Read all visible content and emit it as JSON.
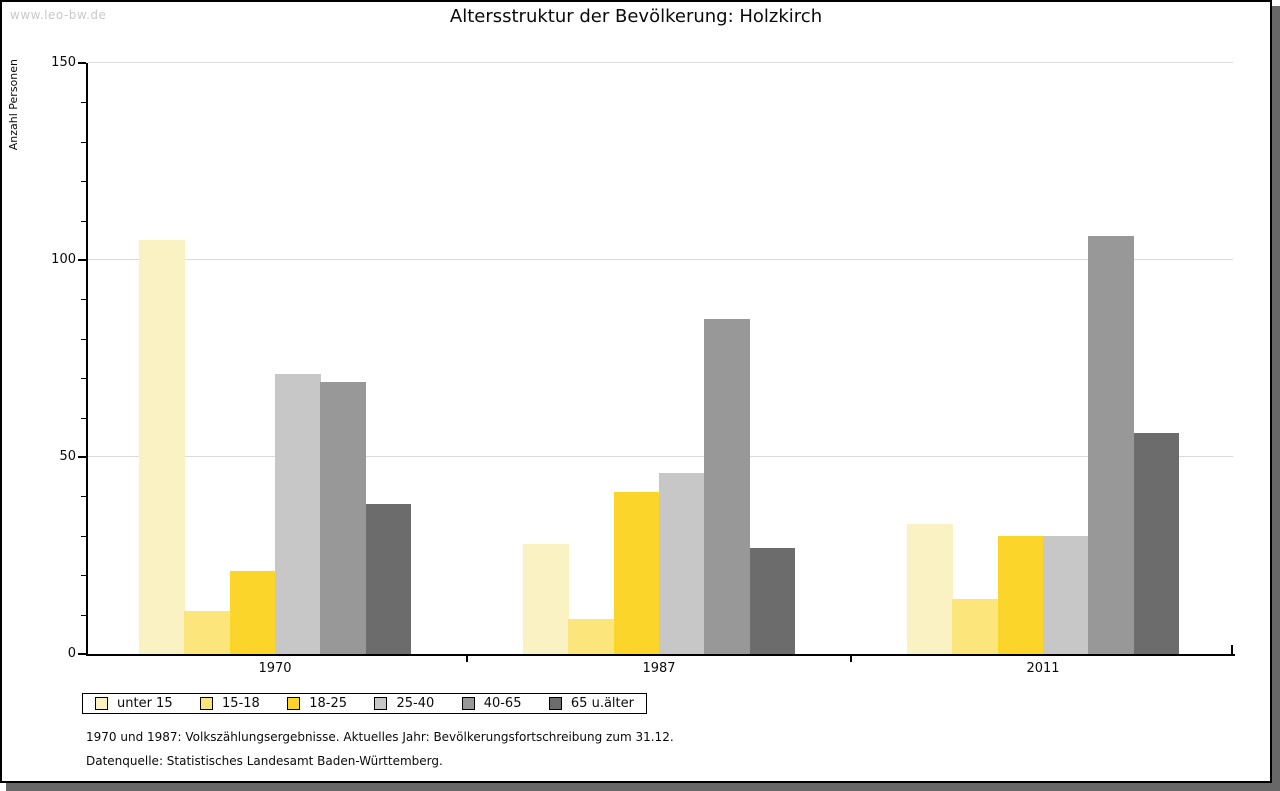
{
  "watermark": "www.leo-bw.de",
  "title": "Altersstruktur der Bevölkerung: Holzkirch",
  "footnote1": "1970 und 1987: Volkszählungsergebnisse. Aktuelles Jahr: Bevölkerungsfortschreibung zum 31.12.",
  "footnote2": "Datenquelle: Statistisches Landesamt Baden-Württemberg.",
  "chart_data": {
    "type": "bar",
    "title": "Altersstruktur der Bevölkerung: Holzkirch",
    "ylabel": "Anzahl Personen",
    "xlabel": "",
    "categories": [
      "1970",
      "1987",
      "2011"
    ],
    "series": [
      {
        "name": "unter 15",
        "color": "#FBF2C3",
        "values": [
          105,
          28,
          33
        ]
      },
      {
        "name": "15-18",
        "color": "#FCE67C",
        "values": [
          11,
          9,
          14
        ]
      },
      {
        "name": "18-25",
        "color": "#FCD52B",
        "values": [
          21,
          41,
          30
        ]
      },
      {
        "name": "25-40",
        "color": "#C7C7C7",
        "values": [
          71,
          46,
          30
        ]
      },
      {
        "name": "40-65",
        "color": "#989898",
        "values": [
          69,
          85,
          106
        ]
      },
      {
        "name": "65 u.älter",
        "color": "#6C6C6C",
        "values": [
          38,
          27,
          56
        ]
      }
    ],
    "ylim": [
      0,
      150
    ],
    "yticks": [
      0,
      50,
      100,
      150
    ],
    "minor_tick_step": 10,
    "grid": "horizontal-major",
    "gridline_color": "#dbdbdb",
    "legend_position": "bottom-left"
  }
}
